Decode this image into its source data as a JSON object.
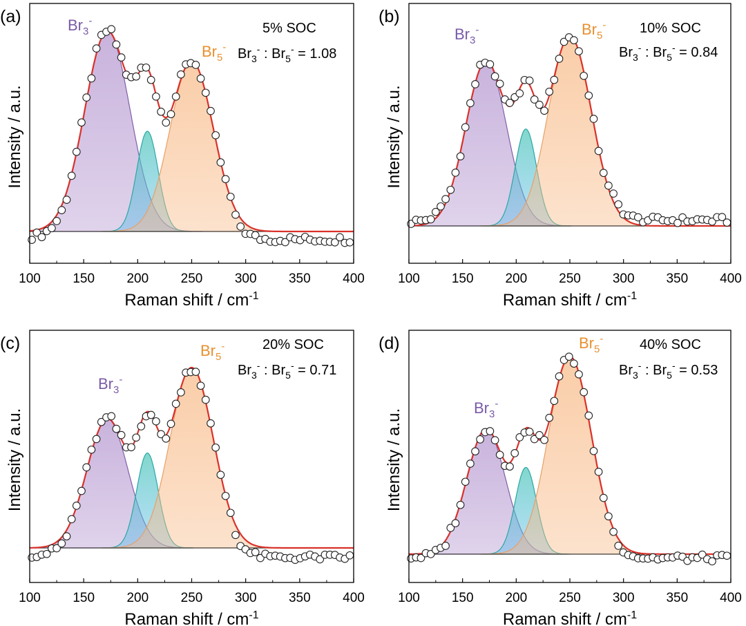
{
  "colors": {
    "br3_fill": "#b394cf",
    "br3_edge": "#7f5fa8",
    "mid_fill": "#58b8ea",
    "mid_edge": "#2aa7a3",
    "teal_fill": "#4fc7b8",
    "br5_fill": "#f8b985",
    "br5_edge": "#e8a066",
    "fit": "#d9312a",
    "br3_label": "#7a5aa8",
    "br5_label": "#e8902f",
    "points_edge": "#222222",
    "baseline": "#444444"
  },
  "chart_data": [
    {
      "type": "scatter",
      "panel_label": "(a)",
      "title": "5% SOC",
      "ratio": {
        "br3": "Br",
        "br3_sub": "3",
        "br3_sup": "-",
        "sep": " : ",
        "br5": "Br",
        "br5_sub": "5",
        "br5_sup": "-",
        "value": " = 1.08"
      },
      "peak_labels": {
        "br3": {
          "base": "Br",
          "sub": "3",
          "sup": "-"
        },
        "br5": {
          "base": "Br",
          "sub": "5",
          "sup": "-"
        }
      },
      "xlabel": {
        "text": "Raman shift / cm",
        "sup": "-1"
      },
      "ylabel": "Intensity / a.u.",
      "xlim": [
        100,
        400
      ],
      "ylim": [
        -0.15,
        1.05
      ],
      "xticks": [
        "100",
        "150",
        "200",
        "250",
        "300",
        "350",
        "400"
      ],
      "peaks": [
        {
          "name": "Br3-",
          "center": 172,
          "amplitude": 1.0,
          "sigma": 21
        },
        {
          "name": "mid",
          "center": 209,
          "amplitude": 0.5,
          "sigma": 10
        },
        {
          "name": "Br5-",
          "center": 250,
          "amplitude": 0.85,
          "sigma": 20
        }
      ],
      "baseline_noise": -0.04
    },
    {
      "type": "scatter",
      "panel_label": "(b)",
      "title": "10% SOC",
      "ratio": {
        "br3": "Br",
        "br3_sub": "3",
        "br3_sup": "-",
        "sep": " : ",
        "br5": "Br",
        "br5_sub": "5",
        "br5_sup": "-",
        "value": " = 0.84"
      },
      "peak_labels": {
        "br3": {
          "base": "Br",
          "sub": "3",
          "sup": "-"
        },
        "br5": {
          "base": "Br",
          "sub": "5",
          "sup": "-"
        }
      },
      "xlabel": {
        "text": "Raman shift / cm",
        "sup": "-1"
      },
      "ylabel": "Intensity / a.u.",
      "xlim": [
        100,
        400
      ],
      "ylim": [
        -0.15,
        1.05
      ],
      "xticks": [
        "100",
        "150",
        "200",
        "250",
        "300",
        "350",
        "400"
      ],
      "peaks": [
        {
          "name": "Br3-",
          "center": 172,
          "amplitude": 0.85,
          "sigma": 19
        },
        {
          "name": "mid",
          "center": 209,
          "amplitude": 0.5,
          "sigma": 10
        },
        {
          "name": "Br5-",
          "center": 250,
          "amplitude": 0.98,
          "sigma": 20
        }
      ],
      "baseline_noise": 0.03
    },
    {
      "type": "scatter",
      "panel_label": "(c)",
      "title": "20% SOC",
      "ratio": {
        "br3": "Br",
        "br3_sub": "3",
        "br3_sup": "-",
        "sep": " : ",
        "br5": "Br",
        "br5_sub": "5",
        "br5_sup": "-",
        "value": " = 0.71"
      },
      "peak_labels": {
        "br3": {
          "base": "Br",
          "sub": "3",
          "sup": "-"
        },
        "br5": {
          "base": "Br",
          "sub": "5",
          "sup": "-"
        }
      },
      "xlabel": {
        "text": "Raman shift / cm",
        "sup": "-1"
      },
      "ylabel": "Intensity / a.u.",
      "xlim": [
        100,
        400
      ],
      "ylim": [
        -0.15,
        1.05
      ],
      "xticks": [
        "100",
        "150",
        "200",
        "250",
        "300",
        "350",
        "400"
      ],
      "peaks": [
        {
          "name": "Br3-",
          "center": 172,
          "amplitude": 0.68,
          "sigma": 19
        },
        {
          "name": "mid",
          "center": 209,
          "amplitude": 0.5,
          "sigma": 10
        },
        {
          "name": "Br5-",
          "center": 250,
          "amplitude": 0.95,
          "sigma": 20
        }
      ],
      "baseline_noise": -0.05
    },
    {
      "type": "scatter",
      "panel_label": "(d)",
      "title": "40% SOC",
      "ratio": {
        "br3": "Br",
        "br3_sub": "3",
        "br3_sup": "-",
        "sep": " : ",
        "br5": "Br",
        "br5_sub": "5",
        "br5_sup": "-",
        "value": " = 0.53"
      },
      "peak_labels": {
        "br3": {
          "base": "Br",
          "sub": "3",
          "sup": "-"
        },
        "br5": {
          "base": "Br",
          "sub": "5",
          "sup": "-"
        }
      },
      "xlabel": {
        "text": "Raman shift / cm",
        "sup": "-1"
      },
      "ylabel": "Intensity / a.u.",
      "xlim": [
        100,
        400
      ],
      "ylim": [
        -0.15,
        1.05
      ],
      "xticks": [
        "100",
        "150",
        "200",
        "250",
        "300",
        "350",
        "400"
      ],
      "peaks": [
        {
          "name": "Br3-",
          "center": 172,
          "amplitude": 0.62,
          "sigma": 18
        },
        {
          "name": "mid",
          "center": 209,
          "amplitude": 0.43,
          "sigma": 10
        },
        {
          "name": "Br5-",
          "center": 250,
          "amplitude": 0.98,
          "sigma": 20
        }
      ],
      "baseline_noise": -0.02
    }
  ]
}
